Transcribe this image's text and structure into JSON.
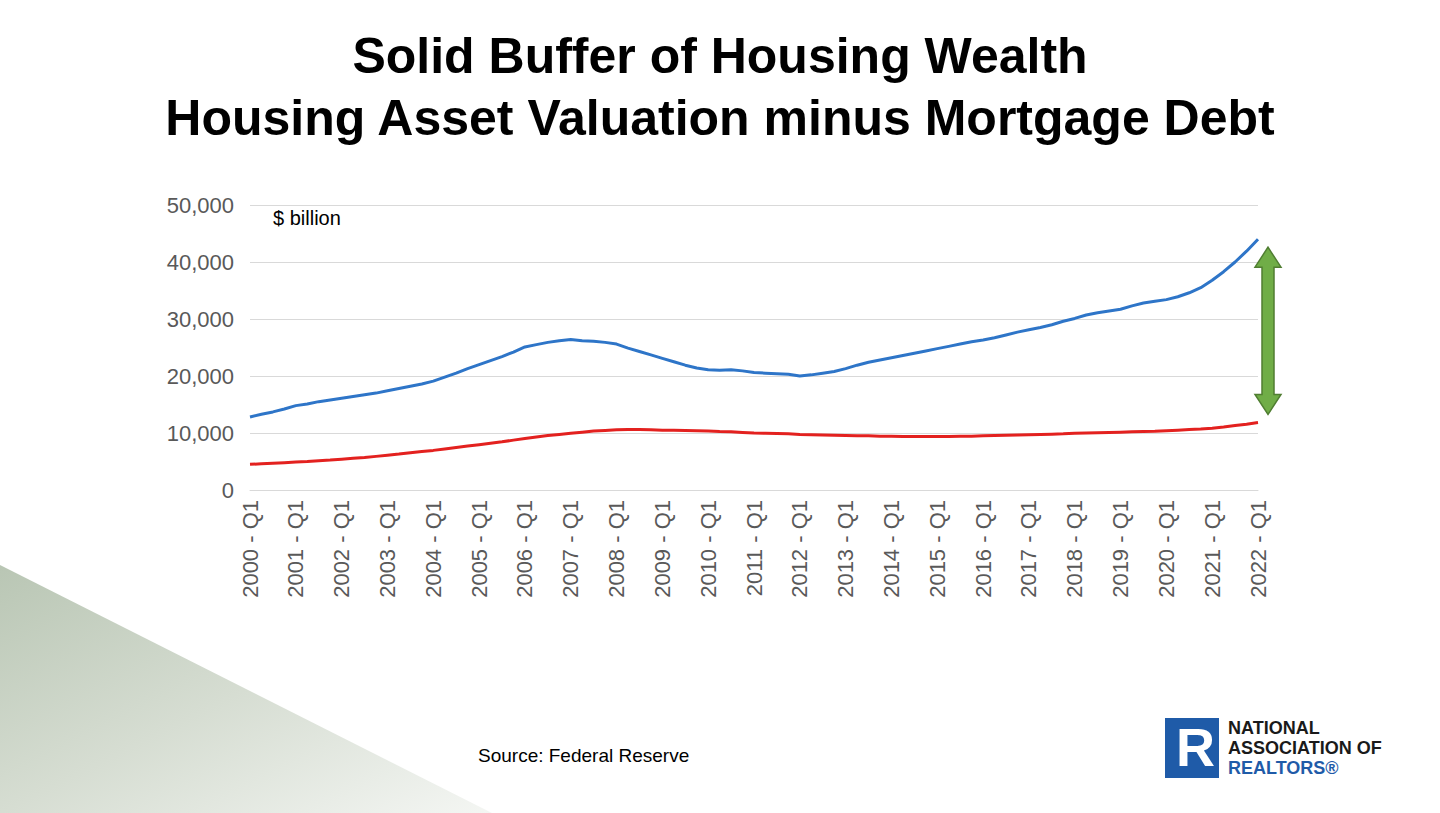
{
  "chart_data": {
    "type": "line",
    "title": "Solid Buffer of Housing Wealth",
    "subtitle": "Housing Asset Valuation minus Mortgage Debt",
    "annotations": [
      "$ billion"
    ],
    "source": "Source: Federal Reserve",
    "logo": {
      "mark": "R",
      "lines": [
        "NATIONAL",
        "ASSOCIATION OF",
        "REALTORS®"
      ]
    },
    "categories": [
      "2000 - Q1",
      null,
      null,
      null,
      "2001 - Q1",
      null,
      null,
      null,
      "2002 - Q1",
      null,
      null,
      null,
      "2003 - Q1",
      null,
      null,
      null,
      "2004 - Q1",
      null,
      null,
      null,
      "2005 - Q1",
      null,
      null,
      null,
      "2006 - Q1",
      null,
      null,
      null,
      "2007 - Q1",
      null,
      null,
      null,
      "2008 - Q1",
      null,
      null,
      null,
      "2009 - Q1",
      null,
      null,
      null,
      "2010 - Q1",
      null,
      null,
      null,
      "2011 - Q1",
      null,
      null,
      null,
      "2012 - Q1",
      null,
      null,
      null,
      "2013 - Q1",
      null,
      null,
      null,
      "2014 - Q1",
      null,
      null,
      null,
      "2015 - Q1",
      null,
      null,
      null,
      "2016 - Q1",
      null,
      null,
      null,
      "2017 - Q1",
      null,
      null,
      null,
      "2018 - Q1",
      null,
      null,
      null,
      "2019 - Q1",
      null,
      null,
      null,
      "2020 - Q1",
      null,
      null,
      null,
      "2021 - Q1",
      null,
      null,
      null,
      "2022 - Q1"
    ],
    "series": [
      {
        "color": "#2E75C8",
        "values": [
          12800,
          13300,
          13700,
          14200,
          14800,
          15100,
          15500,
          15800,
          16100,
          16400,
          16700,
          17000,
          17400,
          17800,
          18200,
          18600,
          19100,
          19800,
          20500,
          21300,
          22000,
          22700,
          23400,
          24200,
          25100,
          25500,
          25900,
          26200,
          26400,
          26200,
          26100,
          25900,
          25600,
          24900,
          24300,
          23700,
          23100,
          22500,
          21900,
          21400,
          21100,
          21000,
          21100,
          20900,
          20600,
          20500,
          20400,
          20300,
          20000,
          20200,
          20500,
          20800,
          21300,
          21900,
          22400,
          22800,
          23200,
          23600,
          24000,
          24400,
          24800,
          25200,
          25600,
          26000,
          26300,
          26700,
          27200,
          27700,
          28100,
          28500,
          29000,
          29600,
          30100,
          30700,
          31100,
          31400,
          31700,
          32300,
          32800,
          33100,
          33400,
          33900,
          34600,
          35500,
          36800,
          38300,
          40000,
          41900,
          44000
        ]
      },
      {
        "color": "#E3211F",
        "values": [
          4500,
          4600,
          4700,
          4800,
          4900,
          5000,
          5150,
          5250,
          5400,
          5550,
          5700,
          5900,
          6100,
          6300,
          6550,
          6750,
          6950,
          7200,
          7450,
          7700,
          7950,
          8200,
          8450,
          8750,
          9050,
          9300,
          9550,
          9750,
          9950,
          10150,
          10350,
          10450,
          10550,
          10600,
          10600,
          10550,
          10500,
          10500,
          10450,
          10400,
          10350,
          10250,
          10200,
          10100,
          10000,
          9950,
          9900,
          9850,
          9750,
          9700,
          9650,
          9600,
          9550,
          9500,
          9500,
          9450,
          9450,
          9400,
          9400,
          9400,
          9400,
          9400,
          9450,
          9450,
          9500,
          9550,
          9600,
          9650,
          9700,
          9750,
          9800,
          9850,
          9950,
          10000,
          10050,
          10100,
          10150,
          10200,
          10250,
          10300,
          10400,
          10500,
          10600,
          10700,
          10850,
          11050,
          11300,
          11550,
          11850
        ]
      }
    ],
    "ylim": [
      0,
      50000
    ],
    "yticks": [
      0,
      {
        "value": 10000,
        "label": "10,000"
      },
      {
        "value": 20000,
        "label": "20,000"
      },
      {
        "value": 30000,
        "label": "30,000"
      },
      {
        "value": 40000,
        "label": "40,000"
      },
      {
        "value": 50000,
        "label": "50,000"
      }
    ],
    "grid": true
  }
}
